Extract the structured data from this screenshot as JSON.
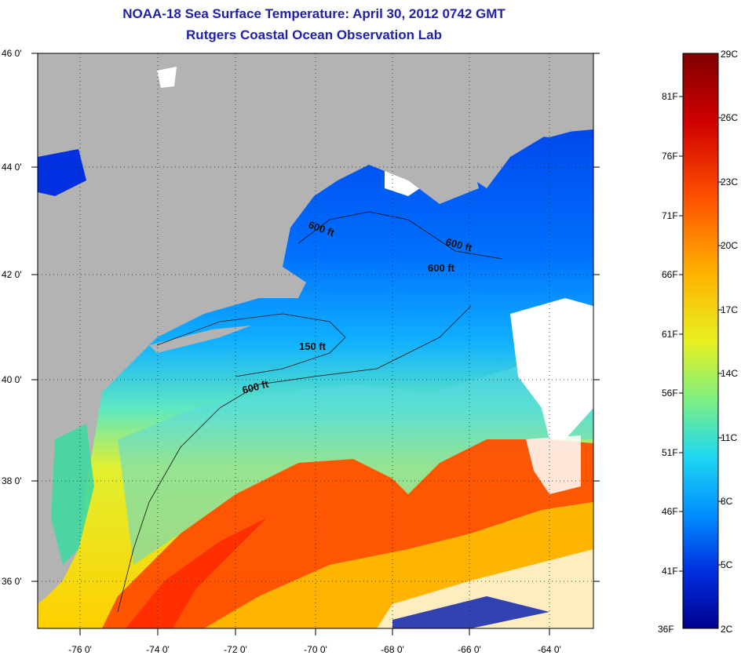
{
  "header": {
    "title": "NOAA-18 Sea Surface Temperature:  April 30, 2012 0742 GMT",
    "subtitle": "Rutgers Coastal Ocean Observation Lab"
  },
  "map": {
    "lat_ticks": [
      "46 0'",
      "44 0'",
      "42 0'",
      "40 0'",
      "38 0'",
      "36 0'"
    ],
    "lon_ticks": [
      "-76 0'",
      "-74 0'",
      "-72 0'",
      "-70 0'",
      "-68 0'",
      "-66 0'",
      "-64 0'"
    ],
    "contour_labels": [
      "600 ft",
      "600 ft",
      "600 ft",
      "150 ft",
      "600 ft"
    ],
    "colors": {
      "land": "#b3b3b3",
      "cloud": "#ffffff",
      "grid": "#222222"
    }
  },
  "colorbar": {
    "celsius": [
      "29C",
      "26C",
      "23C",
      "20C",
      "17C",
      "14C",
      "11C",
      "8C",
      "5C",
      "2C"
    ],
    "fahrenheit": [
      "81F",
      "76F",
      "71F",
      "66F",
      "61F",
      "56F",
      "51F",
      "46F",
      "41F",
      "36F"
    ],
    "colors": [
      "#800000",
      "#e01000",
      "#ff6000",
      "#ffc000",
      "#c8f020",
      "#40f0c0",
      "#00c0ff",
      "#0060ff",
      "#0010d0",
      "#000080"
    ]
  }
}
